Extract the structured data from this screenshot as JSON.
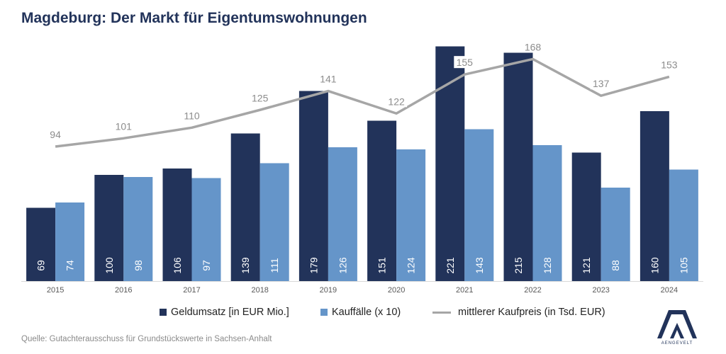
{
  "title": "Magdeburg: Der Markt für Eigentumswohnungen",
  "source": "Quelle: Gutachterausschuss für Grundstückswerte in Sachsen-Anhalt",
  "logo_text": "AENGEVELT",
  "colors": {
    "title": "#22335a",
    "series1": "#22335a",
    "series2": "#6595c9",
    "line": "#a6a6a6"
  },
  "chart_data": {
    "type": "bar",
    "title": "Magdeburg: Der Markt für Eigentumswohnungen",
    "categories": [
      "2015",
      "2016",
      "2017",
      "2018",
      "2019",
      "2020",
      "2021",
      "2022",
      "2023",
      "2024"
    ],
    "series": [
      {
        "name": "Geldumsatz [in EUR Mio.]",
        "type": "bar",
        "values": [
          69,
          100,
          106,
          139,
          179,
          151,
          221,
          215,
          121,
          160
        ]
      },
      {
        "name": "Kauffälle (x 10)",
        "type": "bar",
        "values": [
          74,
          98,
          97,
          111,
          126,
          124,
          143,
          128,
          88,
          105
        ]
      },
      {
        "name": "mittlerer Kaufpreis (in Tsd. EUR)",
        "type": "line",
        "values": [
          94,
          101,
          110,
          125,
          141,
          122,
          155,
          168,
          137,
          153
        ]
      }
    ],
    "legend_position": "bottom",
    "grid": false
  }
}
